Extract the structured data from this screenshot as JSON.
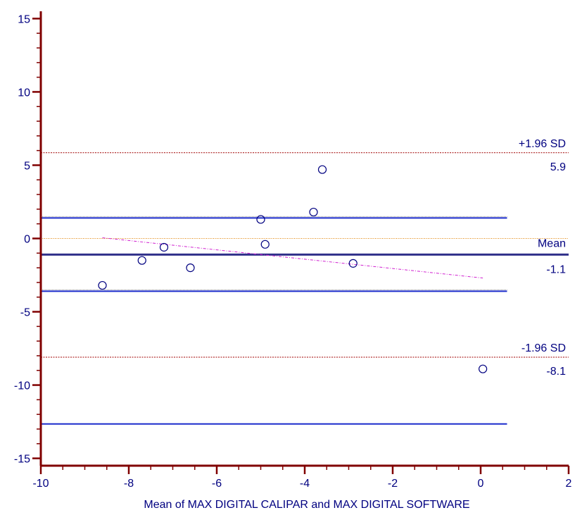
{
  "chart_data": {
    "type": "scatter",
    "title": "",
    "xlabel": "Mean of MAX DIGITAL CALIPAR and MAX DIGITAL SOFTWARE",
    "ylabel": "",
    "xlim": [
      -10,
      2
    ],
    "ylim": [
      -15.5,
      15.5
    ],
    "xticks": [
      "-10",
      "-8",
      "-6",
      "-4",
      "-2",
      "0",
      "2"
    ],
    "xtick_values": [
      -10,
      -8,
      -6,
      -4,
      -2,
      0,
      2
    ],
    "yticks": [
      "15",
      "10",
      "5",
      "0",
      "-5",
      "-10",
      "-15"
    ],
    "ytick_values": [
      15,
      10,
      5,
      0,
      -5,
      -10,
      -15
    ],
    "points": [
      {
        "x": -8.6,
        "y": -3.2
      },
      {
        "x": -7.7,
        "y": -1.5
      },
      {
        "x": -7.2,
        "y": -0.6
      },
      {
        "x": -6.6,
        "y": -2.0
      },
      {
        "x": -5.0,
        "y": 1.3
      },
      {
        "x": -4.9,
        "y": -0.4
      },
      {
        "x": -3.8,
        "y": 1.8
      },
      {
        "x": -3.6,
        "y": 4.7
      },
      {
        "x": -2.9,
        "y": -1.7
      },
      {
        "x": 0.05,
        "y": -8.9
      }
    ],
    "reference_lines": {
      "upper_loa": {
        "label": "+1.96 SD",
        "value_label": "5.9",
        "y": 5.85,
        "color": "#a00000"
      },
      "mean": {
        "label": "Mean",
        "value_label": "-1.1",
        "y": -1.1,
        "color": "#30308a"
      },
      "lower_loa": {
        "label": "-1.96 SD",
        "value_label": "-8.1",
        "y": -8.1,
        "color": "#a00000"
      },
      "zero": {
        "y": 0,
        "color": "#e08000"
      }
    },
    "ci_lines": [
      {
        "y": 1.4,
        "color": "#1c2ccc"
      },
      {
        "y": -3.6,
        "color": "#1c2ccc"
      },
      {
        "y": -12.65,
        "color": "#1c2ccc"
      }
    ],
    "ci_line_x_end": 0.6,
    "regression_line": {
      "x1": -8.6,
      "y1": 0.05,
      "x2": 0.05,
      "y2": -2.7,
      "color": "#d020d0"
    },
    "axis_color": "#800000",
    "point_color": "#000080"
  }
}
